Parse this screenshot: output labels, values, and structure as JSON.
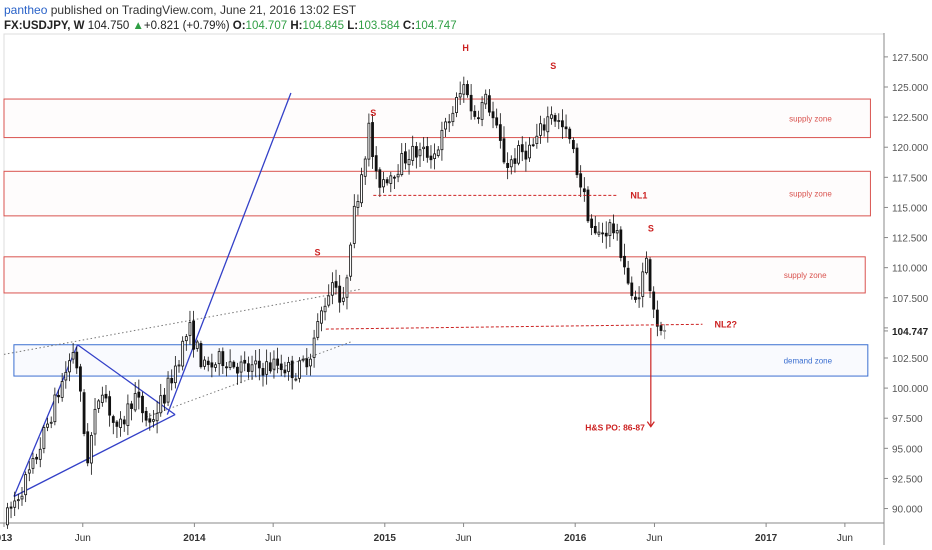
{
  "header": {
    "author": "pantheo",
    "published": "published on TradingView.com, June 21, 2016 13:02 EST",
    "symbol": "FX:USDJPY, W",
    "last": "104.750",
    "up_arrow": "▲",
    "change": "+0.821 (+0.79%)",
    "open_label": "O:",
    "open": "104.707",
    "high_label": "H:",
    "high": "104.845",
    "low_label": "L:",
    "low": "103.584",
    "close_label": "C:",
    "close": "104.747"
  },
  "chart_data": {
    "type": "candlestick",
    "symbol": "FX:USDJPY",
    "interval": "W",
    "ylim": [
      88.8,
      129.4
    ],
    "y_ticks": [
      90.0,
      92.5,
      95.0,
      97.5,
      100.0,
      102.5,
      105.0,
      107.5,
      110.0,
      112.5,
      115.0,
      117.5,
      120.0,
      122.5,
      125.0,
      127.5
    ],
    "y_tick_labels": [
      "90.000",
      "92.500",
      "95.000",
      "97.500",
      "100.000",
      "102.500",
      "",
      "107.500",
      "110.000",
      "112.500",
      "115.000",
      "117.500",
      "120.000",
      "122.500",
      "125.000",
      "127.500"
    ],
    "last_price_label": "104.747",
    "x_ticks": [
      {
        "label": "013",
        "date": "2013-01-01"
      },
      {
        "label": "Jun",
        "date": "2013-06-01"
      },
      {
        "label": "2014",
        "date": "2014-01-01"
      },
      {
        "label": "Jun",
        "date": "2014-06-01"
      },
      {
        "label": "2015",
        "date": "2015-01-01"
      },
      {
        "label": "Jun",
        "date": "2015-06-01"
      },
      {
        "label": "2016",
        "date": "2016-01-01"
      },
      {
        "label": "Jun",
        "date": "2016-06-01"
      },
      {
        "label": "2017",
        "date": "2017-01-01"
      },
      {
        "label": "Jun",
        "date": "2017-06-01"
      }
    ],
    "x_range": [
      "2013-01-01",
      "2017-08-15"
    ],
    "anchors": [
      [
        "2013-01-04",
        88.8
      ],
      [
        "2013-03-01",
        93.5
      ],
      [
        "2013-05-20",
        103.5
      ],
      [
        "2013-06-13",
        94.0
      ],
      [
        "2013-07-10",
        100.5
      ],
      [
        "2013-08-10",
        96.0
      ],
      [
        "2013-09-10",
        99.5
      ],
      [
        "2013-10-10",
        97.0
      ],
      [
        "2013-11-10",
        99.5
      ],
      [
        "2013-12-25",
        105.0
      ],
      [
        "2014-01-25",
        101.5
      ],
      [
        "2014-03-01",
        102.5
      ],
      [
        "2014-04-15",
        101.5
      ],
      [
        "2014-06-15",
        102.0
      ],
      [
        "2014-07-20",
        101.3
      ],
      [
        "2014-08-15",
        103.0
      ],
      [
        "2014-09-10",
        107.0
      ],
      [
        "2014-10-01",
        109.5
      ],
      [
        "2014-10-15",
        106.0
      ],
      [
        "2014-11-01",
        113.0
      ],
      [
        "2014-12-05",
        121.5
      ],
      [
        "2014-12-20",
        117.0
      ],
      [
        "2015-01-20",
        118.0
      ],
      [
        "2015-02-20",
        119.5
      ],
      [
        "2015-04-10",
        119.5
      ],
      [
        "2015-05-25",
        124.0
      ],
      [
        "2015-06-10",
        125.5
      ],
      [
        "2015-06-20",
        122.5
      ],
      [
        "2015-07-20",
        124.0
      ],
      [
        "2015-08-25",
        118.5
      ],
      [
        "2015-09-20",
        119.5
      ],
      [
        "2015-10-15",
        120.0
      ],
      [
        "2015-11-20",
        123.0
      ],
      [
        "2015-12-25",
        120.5
      ],
      [
        "2016-01-15",
        117.0
      ],
      [
        "2016-02-10",
        112.5
      ],
      [
        "2016-03-15",
        113.5
      ],
      [
        "2016-04-05",
        111.0
      ],
      [
        "2016-04-25",
        106.5
      ],
      [
        "2016-05-20",
        110.5
      ],
      [
        "2016-06-05",
        106.5
      ],
      [
        "2016-06-17",
        104.2
      ],
      [
        "2016-06-21",
        104.75
      ]
    ],
    "zones": [
      {
        "label": "supply zone",
        "low": 120.8,
        "high": 124.0,
        "start": "2013-01-01",
        "end": "2017-07-20"
      },
      {
        "label": "supply zone",
        "low": 114.3,
        "high": 118.0,
        "start": "2013-01-01",
        "end": "2017-07-20"
      },
      {
        "label": "supply zone",
        "low": 107.9,
        "high": 110.9,
        "start": "2013-01-01",
        "end": "2017-07-10"
      },
      {
        "label": "demand zone",
        "low": 101.0,
        "high": 103.6,
        "start": "2013-01-20",
        "end": "2017-07-15"
      }
    ],
    "neckline_nl1": {
      "label": "NL1",
      "start": "2014-12-10",
      "end": "2016-03-20",
      "value": 116.0
    },
    "neckline_nl2": {
      "label": "NL2?",
      "start": "2014-09-10",
      "value_start": 104.9,
      "end": "2016-09-01",
      "value_end": 105.3
    },
    "hs_labels": [
      {
        "text": "S",
        "date": "2014-08-25",
        "value": 111.0
      },
      {
        "text": "S",
        "date": "2014-12-10",
        "value": 122.6
      },
      {
        "text": "H",
        "date": "2015-06-05",
        "value": 128.0
      },
      {
        "text": "S",
        "date": "2015-11-20",
        "value": 126.5
      },
      {
        "text": "S",
        "date": "2016-05-25",
        "value": 113.0
      }
    ],
    "projection": {
      "label": "H&S PO: 86-87",
      "date": "2016-05-25",
      "from": 105.0,
      "to": 96.8
    },
    "trend_lines": [
      {
        "kind": "solid",
        "points": [
          [
            "2013-01-20",
            91.0
          ],
          [
            "2013-05-22",
            103.6
          ]
        ]
      },
      {
        "kind": "solid",
        "points": [
          [
            "2013-05-22",
            103.6
          ],
          [
            "2013-11-25",
            97.8
          ]
        ]
      },
      {
        "kind": "solid",
        "points": [
          [
            "2013-01-20",
            91.0
          ],
          [
            "2013-11-25",
            97.8
          ]
        ]
      },
      {
        "kind": "solid",
        "points": [
          [
            "2013-11-10",
            97.8
          ],
          [
            "2014-07-05",
            124.5
          ]
        ]
      },
      {
        "kind": "dotted",
        "points": [
          [
            "2013-01-01",
            102.8
          ],
          [
            "2014-11-15",
            108.2
          ]
        ]
      },
      {
        "kind": "dotted",
        "points": [
          [
            "2013-10-01",
            97.6
          ],
          [
            "2014-11-01",
            103.9
          ]
        ]
      }
    ]
  }
}
